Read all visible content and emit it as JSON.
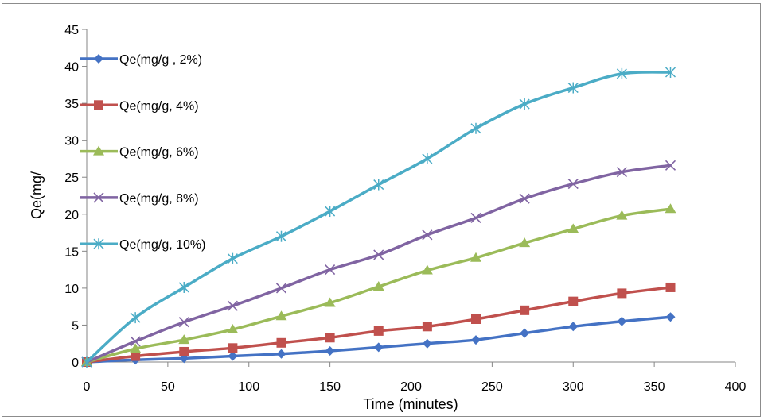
{
  "chart_data": {
    "type": "line",
    "title": "",
    "xlabel": "Time (minutes)",
    "ylabel": "Qe(mg/",
    "xlim": [
      0,
      400
    ],
    "ylim": [
      0,
      45
    ],
    "xticks": [
      0,
      50,
      100,
      150,
      200,
      250,
      300,
      350,
      400
    ],
    "yticks": [
      0,
      5,
      10,
      15,
      20,
      25,
      30,
      35,
      40,
      45
    ],
    "grid": false,
    "legend_position": "top-left",
    "x": [
      0,
      30,
      60,
      90,
      120,
      150,
      180,
      210,
      240,
      270,
      300,
      330,
      360
    ],
    "series": [
      {
        "name": "Qe(mg/g , 2%)",
        "color": "#4472C4",
        "marker": "diamond",
        "values": [
          0,
          0.3,
          0.5,
          0.8,
          1.1,
          1.5,
          2.0,
          2.5,
          3.0,
          3.9,
          4.8,
          5.5,
          6.1
        ]
      },
      {
        "name": "Qe(mg/g, 4%)",
        "color": "#C0504D",
        "marker": "square",
        "values": [
          0,
          0.8,
          1.4,
          1.9,
          2.6,
          3.3,
          4.2,
          4.8,
          5.8,
          7.0,
          8.2,
          9.3,
          10.1
        ]
      },
      {
        "name": "Qe(mg/g, 6%)",
        "color": "#9BBB59",
        "marker": "triangle",
        "values": [
          0,
          1.8,
          3.0,
          4.4,
          6.2,
          8.0,
          10.2,
          12.4,
          14.1,
          16.1,
          18.0,
          19.8,
          20.7
        ]
      },
      {
        "name": "Qe(mg/g, 8%)",
        "color": "#8064A2",
        "marker": "x",
        "values": [
          0,
          2.8,
          5.4,
          7.6,
          10.0,
          12.5,
          14.5,
          17.2,
          19.5,
          22.1,
          24.1,
          25.7,
          26.6
        ]
      },
      {
        "name": "Qe(mg/g, 10%)",
        "color": "#4BACC6",
        "marker": "star",
        "values": [
          0,
          6.0,
          10.1,
          14.0,
          17.0,
          20.4,
          24.0,
          27.5,
          31.6,
          34.9,
          37.1,
          39.0,
          39.2
        ]
      }
    ]
  }
}
